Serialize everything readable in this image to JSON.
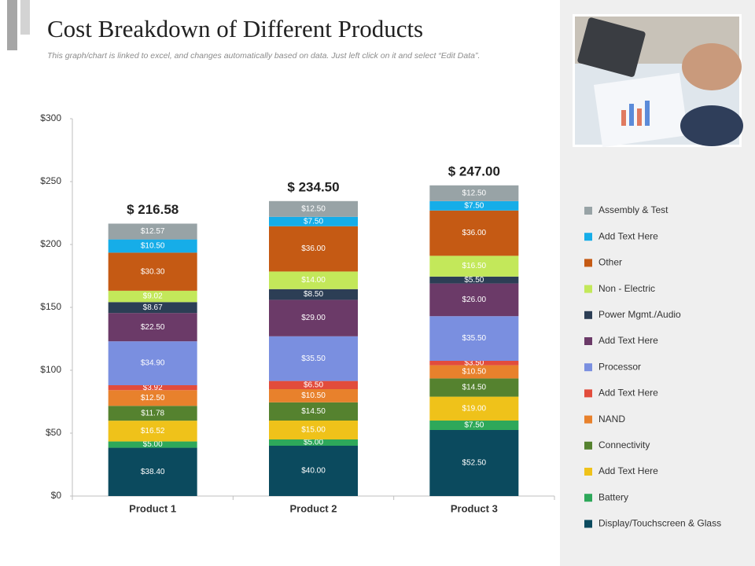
{
  "chart_data": {
    "type": "stacked-bar",
    "title": "Cost Breakdown of Different Products",
    "subtitle": "This graph/chart is linked to excel, and changes automatically based on data. Just left click on it and select “Edit Data”.",
    "categories": [
      "Product 1",
      "Product 2",
      "Product 3"
    ],
    "ylim": [
      0,
      300
    ],
    "yticks": [
      {
        "value": 0,
        "label": "$0"
      },
      {
        "value": 50,
        "label": "$50"
      },
      {
        "value": 100,
        "label": "$100"
      },
      {
        "value": 150,
        "label": "$150"
      },
      {
        "value": 200,
        "label": "$200"
      },
      {
        "value": 250,
        "label": "$250"
      },
      {
        "value": 300,
        "label": "$300"
      }
    ],
    "totals": [
      216.58,
      234.5,
      247
    ],
    "total_labels": [
      "$ 216.58",
      "$ 234.50",
      "$ 247.00"
    ],
    "series": [
      {
        "name": "Display/Touchscreen & Glass",
        "color": "#0b4a5e",
        "values": [
          38.4,
          40,
          52.5
        ],
        "value_labels": [
          "$38.40",
          "$40.00",
          "$52.50"
        ]
      },
      {
        "name": "Battery",
        "color": "#2ea85a",
        "values": [
          5,
          5,
          7.5
        ],
        "value_labels": [
          "$5.00",
          "$5.00",
          "$7.50"
        ]
      },
      {
        "name": "Add Text Here",
        "color": "#efc21a",
        "values": [
          16.52,
          15,
          19
        ],
        "value_labels": [
          "$16.52",
          "$15.00",
          "$19.00"
        ]
      },
      {
        "name": "Connectivity",
        "color": "#55822f",
        "values": [
          11.78,
          14.5,
          14.5
        ],
        "value_labels": [
          "$11.78",
          "$14.50",
          "$14.50"
        ]
      },
      {
        "name": "NAND",
        "color": "#e8812c",
        "values": [
          12.5,
          10.5,
          10.5
        ],
        "value_labels": [
          "$12.50",
          "$10.50",
          "$10.50"
        ]
      },
      {
        "name": "Add Text Here",
        "color": "#e24c3c",
        "values": [
          3.92,
          6.5,
          3.5
        ],
        "value_labels": [
          "$3.92",
          "$6.50",
          "$3.50"
        ]
      },
      {
        "name": "Processor",
        "color": "#7a8fe0",
        "values": [
          34.9,
          35.5,
          35.5
        ],
        "value_labels": [
          "$34.90",
          "$35.50",
          "$35.50"
        ]
      },
      {
        "name": "Add Text Here",
        "color": "#6b3a68",
        "values": [
          22.5,
          29,
          26
        ],
        "value_labels": [
          "$22.50",
          "$29.00",
          "$26.00"
        ]
      },
      {
        "name": "Power Mgmt./Audio",
        "color": "#2c3e55",
        "values": [
          8.67,
          8.5,
          5.5
        ],
        "value_labels": [
          "$8.67",
          "$8.50",
          "$5.50"
        ]
      },
      {
        "name": "Non - Electric",
        "color": "#c3e85a",
        "values": [
          9.02,
          14,
          16.5
        ],
        "value_labels": [
          "$9.02",
          "$14.00",
          "$16.50"
        ]
      },
      {
        "name": "Other",
        "color": "#c55a14",
        "values": [
          30.3,
          36,
          36
        ],
        "value_labels": [
          "$30.30",
          "$36.00",
          "$36.00"
        ]
      },
      {
        "name": "Add Text Here",
        "color": "#16ade8",
        "values": [
          10.5,
          7.5,
          7.5
        ],
        "value_labels": [
          "$10.50",
          "$7.50",
          "$7.50"
        ]
      },
      {
        "name": "Assembly & Test",
        "color": "#98a3a6",
        "values": [
          12.57,
          12.5,
          12.5
        ],
        "value_labels": [
          "$12.57",
          "$12.50",
          "$12.50"
        ]
      }
    ]
  }
}
